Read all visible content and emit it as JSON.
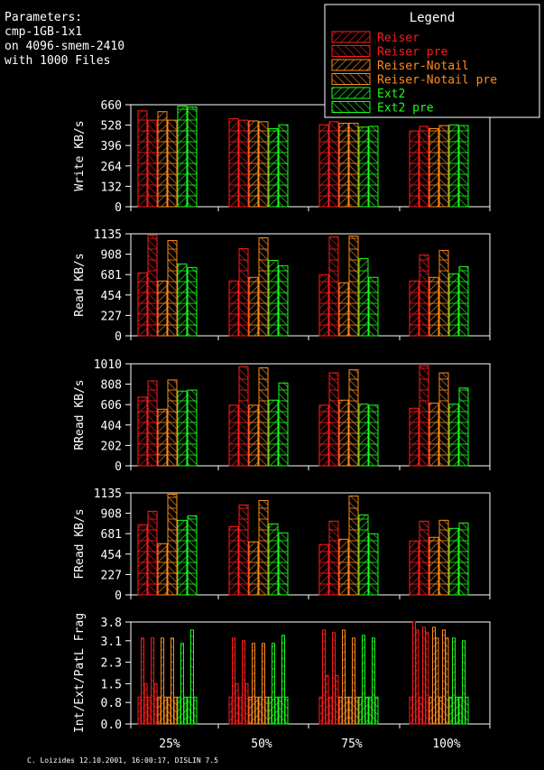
{
  "parameters": {
    "lines": [
      "Parameters:",
      "cmp-1GB-1x1",
      "on 4096-smem-2410",
      "with 1000 Files"
    ]
  },
  "footer": "C. Loizides 12.10.2001, 16:00:17, DISLIN 7.5",
  "legend": {
    "title": "Legend",
    "position": "top-right"
  },
  "colors": {
    "background": "#000000",
    "foreground": "#ffffff",
    "Reiser": "#ff1a1a",
    "Reiser pre": "#ff1a1a",
    "Reiser-Notail": "#ff8c1a",
    "Reiser-Notail pre": "#ff8c1a",
    "Ext2": "#1aff1a",
    "Ext2 pre": "#1aff1a"
  },
  "chart_data": [
    {
      "type": "bar",
      "ylabel": "Write KB/s",
      "categories": [
        "25%",
        "50%",
        "75%",
        "100%"
      ],
      "yticks": [
        0,
        132,
        264,
        396,
        528,
        660
      ],
      "ylim": [
        0,
        660
      ],
      "series": [
        {
          "name": "Reiser",
          "values": [
            620,
            570,
            530,
            490
          ]
        },
        {
          "name": "Reiser pre",
          "values": [
            560,
            560,
            550,
            520
          ]
        },
        {
          "name": "Reiser-Notail",
          "values": [
            615,
            555,
            540,
            505
          ]
        },
        {
          "name": "Reiser-Notail pre",
          "values": [
            560,
            550,
            540,
            525
          ]
        },
        {
          "name": "Ext2",
          "values": [
            650,
            505,
            515,
            530
          ]
        },
        {
          "name": "Ext2 pre",
          "values": [
            645,
            530,
            520,
            525
          ]
        }
      ]
    },
    {
      "type": "bar",
      "ylabel": "Read KB/s",
      "categories": [
        "25%",
        "50%",
        "75%",
        "100%"
      ],
      "yticks": [
        0,
        227,
        454,
        681,
        908,
        1135
      ],
      "ylim": [
        0,
        1135
      ],
      "series": [
        {
          "name": "Reiser",
          "values": [
            700,
            610,
            680,
            610
          ]
        },
        {
          "name": "Reiser pre",
          "values": [
            1120,
            970,
            1100,
            900
          ]
        },
        {
          "name": "Reiser-Notail",
          "values": [
            610,
            650,
            590,
            650
          ]
        },
        {
          "name": "Reiser-Notail pre",
          "values": [
            1060,
            1090,
            1110,
            950
          ]
        },
        {
          "name": "Ext2",
          "values": [
            800,
            840,
            860,
            690
          ]
        },
        {
          "name": "Ext2 pre",
          "values": [
            760,
            780,
            650,
            770
          ]
        }
      ]
    },
    {
      "type": "bar",
      "ylabel": "RRead KB/s",
      "categories": [
        "25%",
        "50%",
        "75%",
        "100%"
      ],
      "yticks": [
        0,
        202,
        404,
        606,
        808,
        1010
      ],
      "ylim": [
        0,
        1010
      ],
      "series": [
        {
          "name": "Reiser",
          "values": [
            680,
            600,
            600,
            570
          ]
        },
        {
          "name": "Reiser pre",
          "values": [
            840,
            980,
            920,
            990
          ]
        },
        {
          "name": "Reiser-Notail",
          "values": [
            560,
            600,
            650,
            620
          ]
        },
        {
          "name": "Reiser-Notail pre",
          "values": [
            850,
            970,
            950,
            920
          ]
        },
        {
          "name": "Ext2",
          "values": [
            740,
            650,
            610,
            610
          ]
        },
        {
          "name": "Ext2 pre",
          "values": [
            750,
            820,
            600,
            770
          ]
        }
      ]
    },
    {
      "type": "bar",
      "ylabel": "FRead KB/s",
      "categories": [
        "25%",
        "50%",
        "75%",
        "100%"
      ],
      "yticks": [
        0,
        227,
        454,
        681,
        908,
        1135
      ],
      "ylim": [
        0,
        1135
      ],
      "series": [
        {
          "name": "Reiser",
          "values": [
            780,
            760,
            560,
            600
          ]
        },
        {
          "name": "Reiser pre",
          "values": [
            930,
            1000,
            820,
            820
          ]
        },
        {
          "name": "Reiser-Notail",
          "values": [
            570,
            590,
            620,
            640
          ]
        },
        {
          "name": "Reiser-Notail pre",
          "values": [
            1120,
            1050,
            1100,
            830
          ]
        },
        {
          "name": "Ext2",
          "values": [
            830,
            790,
            890,
            740
          ]
        },
        {
          "name": "Ext2 pre",
          "values": [
            880,
            690,
            680,
            800
          ]
        }
      ]
    },
    {
      "type": "bar",
      "ylabel": "Int/Ext/PatL Frag",
      "categories": [
        "25%",
        "50%",
        "75%",
        "100%"
      ],
      "yticks": [
        "0.0",
        "0.8",
        "1.5",
        "2.3",
        "3.1",
        "3.8"
      ],
      "ylim": [
        0,
        3.8
      ],
      "groups": [
        [
          [
            1.0,
            3.2,
            1.5
          ],
          [
            1.0,
            3.2,
            1.5
          ],
          [
            1.0,
            3.2,
            1.0
          ],
          [
            1.0,
            3.2,
            1.0
          ],
          [
            1.0,
            3.0,
            1.0
          ],
          [
            1.0,
            3.5,
            1.0
          ]
        ],
        [
          [
            1.0,
            3.2,
            1.5
          ],
          [
            1.0,
            3.1,
            1.5
          ],
          [
            1.0,
            3.0,
            1.0
          ],
          [
            1.0,
            3.0,
            1.0
          ],
          [
            1.0,
            3.0,
            1.0
          ],
          [
            1.0,
            3.3,
            1.0
          ]
        ],
        [
          [
            1.0,
            3.5,
            1.8
          ],
          [
            1.0,
            3.4,
            1.8
          ],
          [
            1.0,
            3.5,
            1.0
          ],
          [
            1.0,
            3.2,
            1.0
          ],
          [
            1.0,
            3.3,
            1.0
          ],
          [
            1.0,
            3.2,
            1.0
          ]
        ],
        [
          [
            1.0,
            3.8,
            3.5
          ],
          [
            1.0,
            3.6,
            3.4
          ],
          [
            1.0,
            3.6,
            3.2
          ],
          [
            1.0,
            3.5,
            3.2
          ],
          [
            1.0,
            3.2,
            1.0
          ],
          [
            1.0,
            3.1,
            1.0
          ]
        ]
      ]
    }
  ]
}
